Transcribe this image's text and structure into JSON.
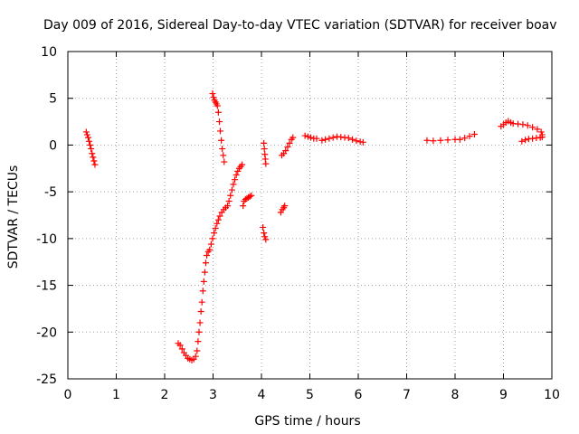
{
  "chart_data": {
    "type": "scatter",
    "title": "Day 009 of 2016, Sidereal Day-to-day VTEC variation (SDTVAR) for receiver boav",
    "xlabel": "GPS time / hours",
    "ylabel": "SDTVAR / TECUs",
    "xlim": [
      0,
      10
    ],
    "ylim": [
      -25,
      10
    ],
    "xticks": [
      0,
      1,
      2,
      3,
      4,
      5,
      6,
      7,
      8,
      9,
      10
    ],
    "yticks": [
      -25,
      -20,
      -15,
      -10,
      -5,
      0,
      5,
      10
    ],
    "grid": true,
    "marker": "+",
    "series_color": "#ff0000",
    "segments": [
      [
        [
          0.38,
          1.4
        ],
        [
          0.4,
          1.1
        ],
        [
          0.42,
          0.8
        ],
        [
          0.44,
          0.4
        ],
        [
          0.46,
          0.0
        ],
        [
          0.48,
          -0.4
        ],
        [
          0.5,
          -0.9
        ],
        [
          0.52,
          -1.3
        ],
        [
          0.54,
          -1.7
        ],
        [
          0.56,
          -2.1
        ]
      ],
      [
        [
          2.28,
          -21.2
        ],
        [
          2.32,
          -21.4
        ],
        [
          2.36,
          -21.8
        ],
        [
          2.4,
          -22.2
        ],
        [
          2.44,
          -22.5
        ],
        [
          2.48,
          -22.8
        ],
        [
          2.52,
          -22.9
        ],
        [
          2.56,
          -23.0
        ],
        [
          2.6,
          -22.9
        ],
        [
          2.64,
          -22.6
        ],
        [
          2.67,
          -22.0
        ],
        [
          2.69,
          -21.0
        ],
        [
          2.71,
          -20.0
        ],
        [
          2.73,
          -19.0
        ],
        [
          2.75,
          -17.8
        ],
        [
          2.77,
          -16.8
        ],
        [
          2.79,
          -15.6
        ],
        [
          2.81,
          -14.6
        ],
        [
          2.83,
          -13.6
        ],
        [
          2.85,
          -12.6
        ],
        [
          2.87,
          -11.8
        ],
        [
          2.9,
          -11.4
        ],
        [
          2.93,
          -11.2
        ],
        [
          2.96,
          -10.6
        ],
        [
          2.99,
          -10.0
        ],
        [
          3.02,
          -9.4
        ],
        [
          3.05,
          -8.9
        ],
        [
          3.08,
          -8.4
        ],
        [
          3.11,
          -8.0
        ],
        [
          3.14,
          -7.6
        ],
        [
          3.18,
          -7.2
        ],
        [
          3.22,
          -6.9
        ],
        [
          3.26,
          -6.7
        ],
        [
          3.3,
          -6.5
        ],
        [
          3.33,
          -6.0
        ],
        [
          3.36,
          -5.4
        ],
        [
          3.39,
          -4.8
        ],
        [
          3.42,
          -4.2
        ],
        [
          3.45,
          -3.7
        ],
        [
          3.48,
          -3.2
        ],
        [
          3.51,
          -2.8
        ],
        [
          3.54,
          -2.5
        ],
        [
          3.57,
          -2.3
        ],
        [
          3.6,
          -2.1
        ]
      ],
      [
        [
          2.99,
          5.5
        ],
        [
          3.01,
          5.1
        ],
        [
          3.03,
          4.8
        ],
        [
          3.05,
          4.6
        ],
        [
          3.07,
          4.4
        ],
        [
          3.09,
          4.2
        ],
        [
          3.11,
          3.5
        ],
        [
          3.13,
          2.5
        ],
        [
          3.15,
          1.5
        ],
        [
          3.17,
          0.5
        ],
        [
          3.19,
          -0.4
        ],
        [
          3.21,
          -1.1
        ],
        [
          3.23,
          -1.8
        ]
      ],
      [
        [
          3.62,
          -6.5
        ],
        [
          3.64,
          -6.0
        ],
        [
          3.67,
          -5.8
        ],
        [
          3.7,
          -5.7
        ],
        [
          3.73,
          -5.6
        ],
        [
          3.76,
          -5.5
        ],
        [
          3.79,
          -5.4
        ]
      ],
      [
        [
          4.05,
          0.2
        ],
        [
          4.06,
          -0.4
        ],
        [
          4.07,
          -1.0
        ],
        [
          4.08,
          -1.5
        ],
        [
          4.09,
          -2.0
        ]
      ],
      [
        [
          4.03,
          -8.8
        ],
        [
          4.05,
          -9.4
        ],
        [
          4.07,
          -9.8
        ],
        [
          4.09,
          -10.1
        ]
      ],
      [
        [
          4.4,
          -7.2
        ],
        [
          4.43,
          -6.9
        ],
        [
          4.46,
          -6.7
        ],
        [
          4.48,
          -6.5
        ]
      ],
      [
        [
          4.42,
          -1.1
        ],
        [
          4.46,
          -0.9
        ],
        [
          4.5,
          -0.6
        ],
        [
          4.54,
          -0.2
        ],
        [
          4.58,
          0.2
        ],
        [
          4.62,
          0.6
        ],
        [
          4.65,
          0.8
        ]
      ],
      [
        [
          4.9,
          1.0
        ],
        [
          4.96,
          0.9
        ],
        [
          5.02,
          0.8
        ],
        [
          5.08,
          0.7
        ],
        [
          5.14,
          0.7
        ]
      ],
      [
        [
          5.25,
          0.5
        ],
        [
          5.32,
          0.6
        ],
        [
          5.4,
          0.7
        ],
        [
          5.48,
          0.8
        ],
        [
          5.56,
          0.9
        ],
        [
          5.64,
          0.85
        ],
        [
          5.72,
          0.8
        ],
        [
          5.8,
          0.75
        ],
        [
          5.88,
          0.6
        ],
        [
          5.96,
          0.45
        ],
        [
          6.04,
          0.35
        ],
        [
          6.1,
          0.3
        ]
      ],
      [
        [
          7.42,
          0.5
        ],
        [
          7.55,
          0.45
        ],
        [
          7.7,
          0.5
        ],
        [
          7.85,
          0.55
        ],
        [
          8.0,
          0.6
        ],
        [
          8.1,
          0.6
        ],
        [
          8.2,
          0.75
        ],
        [
          8.3,
          0.95
        ],
        [
          8.4,
          1.15
        ]
      ],
      [
        [
          8.95,
          2.0
        ],
        [
          9.0,
          2.2
        ],
        [
          9.05,
          2.4
        ],
        [
          9.1,
          2.55
        ],
        [
          9.15,
          2.4
        ],
        [
          9.2,
          2.3
        ],
        [
          9.3,
          2.25
        ],
        [
          9.4,
          2.2
        ],
        [
          9.5,
          2.1
        ],
        [
          9.6,
          1.9
        ],
        [
          9.7,
          1.7
        ],
        [
          9.78,
          1.4
        ],
        [
          9.8,
          1.1
        ]
      ],
      [
        [
          9.38,
          0.4
        ],
        [
          9.45,
          0.55
        ],
        [
          9.52,
          0.65
        ],
        [
          9.6,
          0.7
        ],
        [
          9.68,
          0.75
        ],
        [
          9.76,
          0.8
        ],
        [
          9.8,
          0.85
        ]
      ]
    ]
  }
}
